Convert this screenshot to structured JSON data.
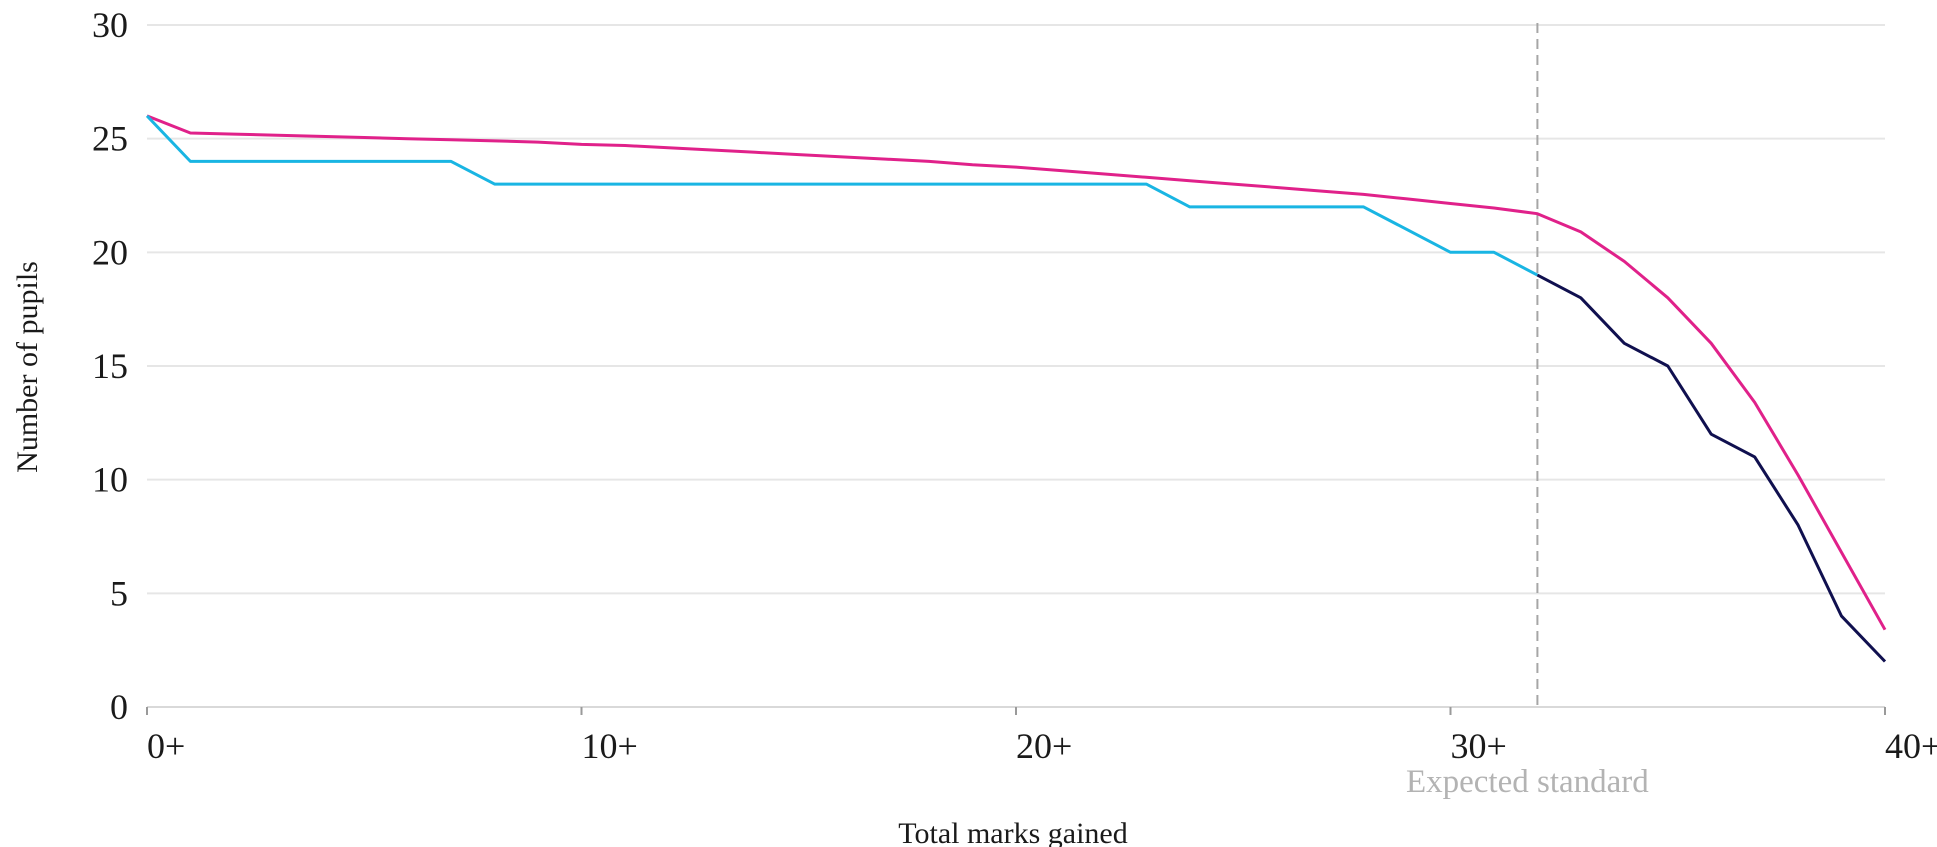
{
  "chart_data": {
    "type": "line",
    "title": "",
    "xlabel": "Total marks gained",
    "ylabel": "Number of pupils",
    "xlim": [
      0,
      40
    ],
    "ylim": [
      0,
      30
    ],
    "x_ticks": [
      0,
      10,
      20,
      30,
      40
    ],
    "x_tick_labels": [
      "0+",
      "10+",
      "20+",
      "30+",
      "40+"
    ],
    "y_ticks": [
      0,
      5,
      10,
      15,
      20,
      25,
      30
    ],
    "y_tick_labels": [
      "0",
      "5",
      "10",
      "15",
      "20",
      "25",
      "30"
    ],
    "grid": "horizontal",
    "legend": "none",
    "reference_line": {
      "x": 32,
      "label": "Expected standard",
      "color": "#a6a6a6",
      "style": "dashed"
    },
    "series": [
      {
        "color": "#e0218a",
        "x": [
          0,
          1,
          2,
          3,
          4,
          5,
          6,
          7,
          8,
          9,
          10,
          11,
          12,
          13,
          14,
          15,
          16,
          17,
          18,
          19,
          20,
          21,
          22,
          23,
          24,
          25,
          26,
          27,
          28,
          29,
          30,
          31,
          32,
          33,
          34,
          35,
          36,
          37,
          38,
          39,
          40
        ],
        "y": [
          26,
          25.25,
          25.2,
          25.15,
          25.1,
          25.05,
          25,
          24.95,
          24.9,
          24.85,
          24.75,
          24.7,
          24.6,
          24.5,
          24.4,
          24.3,
          24.2,
          24.1,
          24,
          23.85,
          23.75,
          23.6,
          23.45,
          23.3,
          23.15,
          23,
          22.85,
          22.7,
          22.55,
          22.35,
          22.15,
          21.95,
          21.7,
          20.9,
          19.6,
          18,
          16,
          13.4,
          10.2,
          6.8,
          3.4
        ]
      },
      {
        "color": "#19b5e3",
        "x": [
          0,
          1,
          7,
          8,
          23,
          24,
          28,
          30,
          31,
          32
        ],
        "y": [
          26,
          24,
          24,
          23,
          23,
          22,
          22,
          20,
          20,
          19
        ]
      },
      {
        "color": "#10104f",
        "x": [
          32,
          33,
          34,
          35,
          36,
          37,
          38,
          39,
          40
        ],
        "y": [
          19,
          18,
          16,
          15,
          12,
          11,
          8,
          4,
          2
        ]
      }
    ]
  }
}
